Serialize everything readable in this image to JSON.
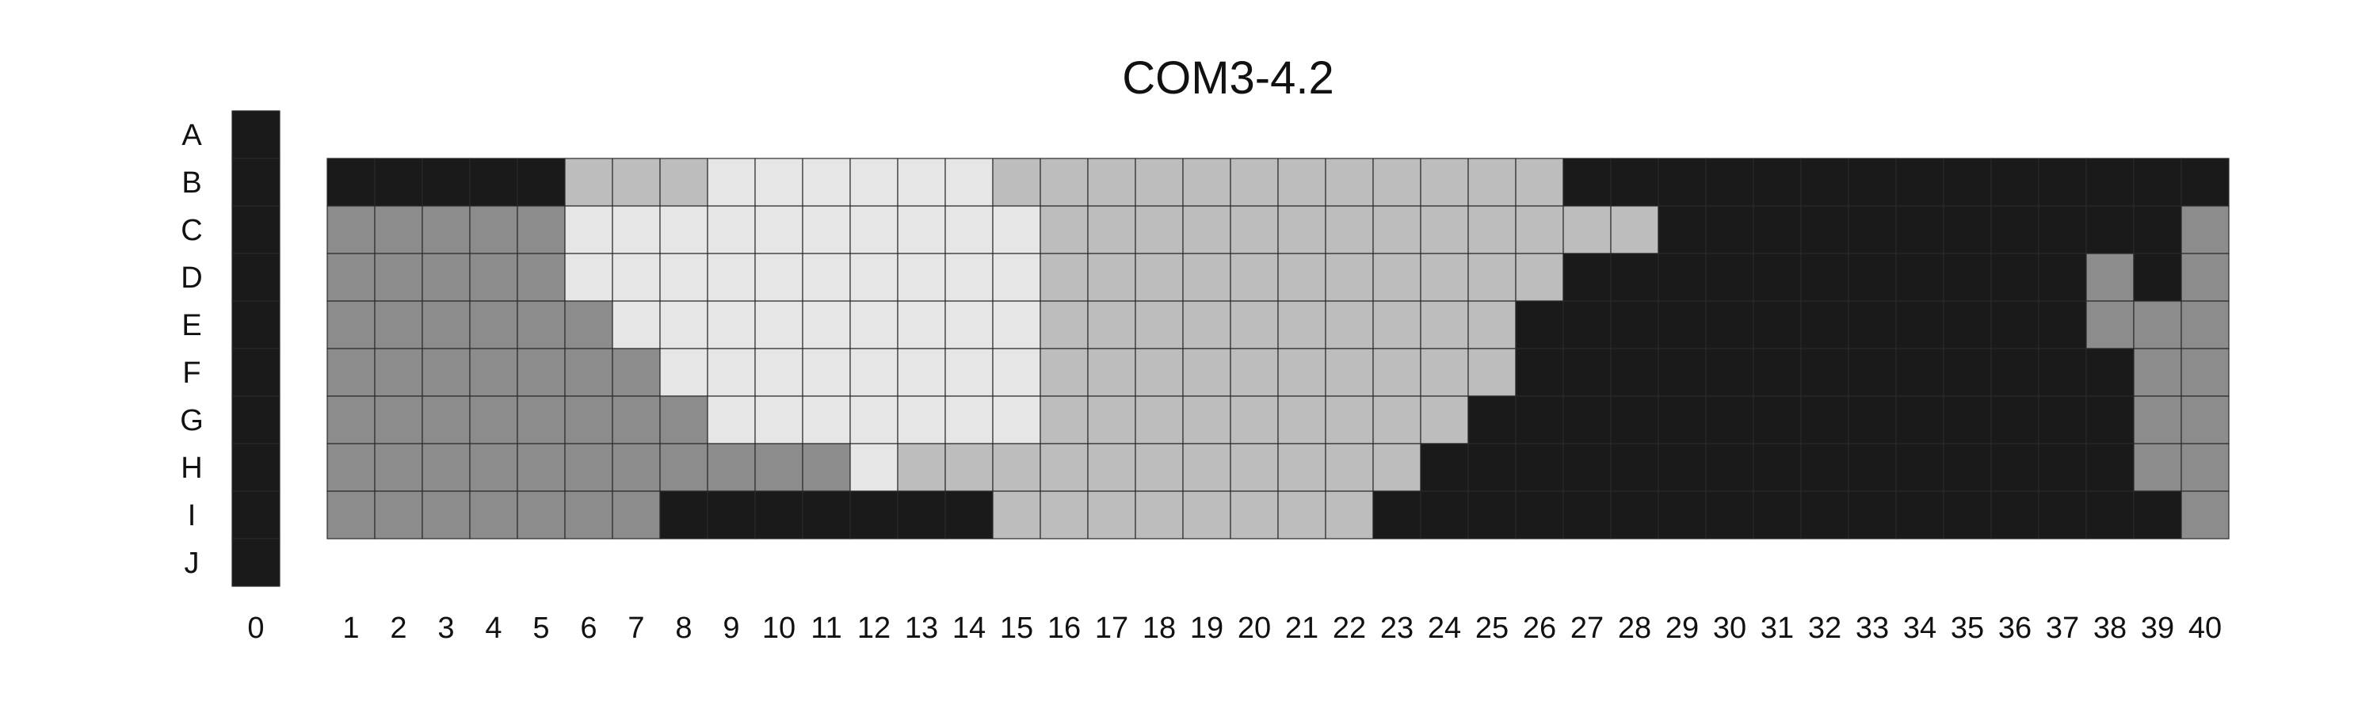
{
  "chart_data": {
    "type": "heatmap",
    "title": "COM3-4.2",
    "xlabel": "",
    "ylabel": "",
    "row_labels": [
      "A",
      "B",
      "C",
      "D",
      "E",
      "F",
      "G",
      "H",
      "I",
      "J"
    ],
    "col_labels": [
      "0",
      "1",
      "2",
      "3",
      "4",
      "5",
      "6",
      "7",
      "8",
      "9",
      "10",
      "11",
      "12",
      "13",
      "14",
      "15",
      "16",
      "17",
      "18",
      "19",
      "20",
      "21",
      "22",
      "23",
      "24",
      "25",
      "26",
      "27",
      "28",
      "29",
      "30",
      "31",
      "32",
      "33",
      "34",
      "35",
      "36",
      "37",
      "38",
      "39",
      "40"
    ],
    "value_scale": {
      "0": "black",
      "1": "dark gray",
      "2": "light gray",
      "3": "very light gray"
    },
    "colors": {
      "0": "#1a1a1a",
      "1": "#8c8c8c",
      "2": "#bdbdbd",
      "3": "#e6e6e6"
    },
    "column_0_rows": [
      "A",
      "B",
      "C",
      "D",
      "E",
      "F",
      "G",
      "H",
      "I",
      "J"
    ],
    "column_0_values": [
      0,
      0,
      0,
      0,
      0,
      0,
      0,
      0,
      0,
      0
    ],
    "grid_rows": [
      "B",
      "C",
      "D",
      "E",
      "F",
      "G",
      "H",
      "I"
    ],
    "grid_cols": [
      "1",
      "2",
      "3",
      "4",
      "5",
      "6",
      "7",
      "8",
      "9",
      "10",
      "11",
      "12",
      "13",
      "14",
      "15",
      "16",
      "17",
      "18",
      "19",
      "20",
      "21",
      "22",
      "23",
      "24",
      "25",
      "26",
      "27",
      "28",
      "29",
      "30",
      "31",
      "32",
      "33",
      "34",
      "35",
      "36",
      "37",
      "38",
      "39",
      "40"
    ],
    "values": [
      [
        0,
        0,
        0,
        0,
        0,
        2,
        2,
        2,
        3,
        3,
        3,
        3,
        3,
        3,
        2,
        2,
        2,
        2,
        2,
        2,
        2,
        2,
        2,
        2,
        2,
        2,
        0,
        0,
        0,
        0,
        0,
        0,
        0,
        0,
        0,
        0,
        0,
        0,
        0,
        0
      ],
      [
        1,
        1,
        1,
        1,
        1,
        3,
        3,
        3,
        3,
        3,
        3,
        3,
        3,
        3,
        3,
        2,
        2,
        2,
        2,
        2,
        2,
        2,
        2,
        2,
        2,
        2,
        2,
        2,
        0,
        0,
        0,
        0,
        0,
        0,
        0,
        0,
        0,
        0,
        0,
        1
      ],
      [
        1,
        1,
        1,
        1,
        1,
        3,
        3,
        3,
        3,
        3,
        3,
        3,
        3,
        3,
        3,
        2,
        2,
        2,
        2,
        2,
        2,
        2,
        2,
        2,
        2,
        2,
        0,
        0,
        0,
        0,
        0,
        0,
        0,
        0,
        0,
        0,
        0,
        1,
        0,
        1
      ],
      [
        1,
        1,
        1,
        1,
        1,
        1,
        3,
        3,
        3,
        3,
        3,
        3,
        3,
        3,
        3,
        2,
        2,
        2,
        2,
        2,
        2,
        2,
        2,
        2,
        2,
        0,
        0,
        0,
        0,
        0,
        0,
        0,
        0,
        0,
        0,
        0,
        0,
        1,
        1,
        1
      ],
      [
        1,
        1,
        1,
        1,
        1,
        1,
        1,
        3,
        3,
        3,
        3,
        3,
        3,
        3,
        3,
        2,
        2,
        2,
        2,
        2,
        2,
        2,
        2,
        2,
        2,
        0,
        0,
        0,
        0,
        0,
        0,
        0,
        0,
        0,
        0,
        0,
        0,
        0,
        1,
        1
      ],
      [
        1,
        1,
        1,
        1,
        1,
        1,
        1,
        1,
        3,
        3,
        3,
        3,
        3,
        3,
        3,
        2,
        2,
        2,
        2,
        2,
        2,
        2,
        2,
        2,
        0,
        0,
        0,
        0,
        0,
        0,
        0,
        0,
        0,
        0,
        0,
        0,
        0,
        0,
        1,
        1
      ],
      [
        1,
        1,
        1,
        1,
        1,
        1,
        1,
        1,
        1,
        1,
        1,
        3,
        2,
        2,
        2,
        2,
        2,
        2,
        2,
        2,
        2,
        2,
        2,
        0,
        0,
        0,
        0,
        0,
        0,
        0,
        0,
        0,
        0,
        0,
        0,
        0,
        0,
        0,
        1,
        1
      ],
      [
        1,
        1,
        1,
        1,
        1,
        1,
        1,
        0,
        0,
        0,
        0,
        0,
        0,
        0,
        2,
        2,
        2,
        2,
        2,
        2,
        2,
        2,
        0,
        0,
        0,
        0,
        0,
        0,
        0,
        0,
        0,
        0,
        0,
        0,
        0,
        0,
        0,
        0,
        0,
        1
      ]
    ],
    "grid": true,
    "legend": "none"
  }
}
